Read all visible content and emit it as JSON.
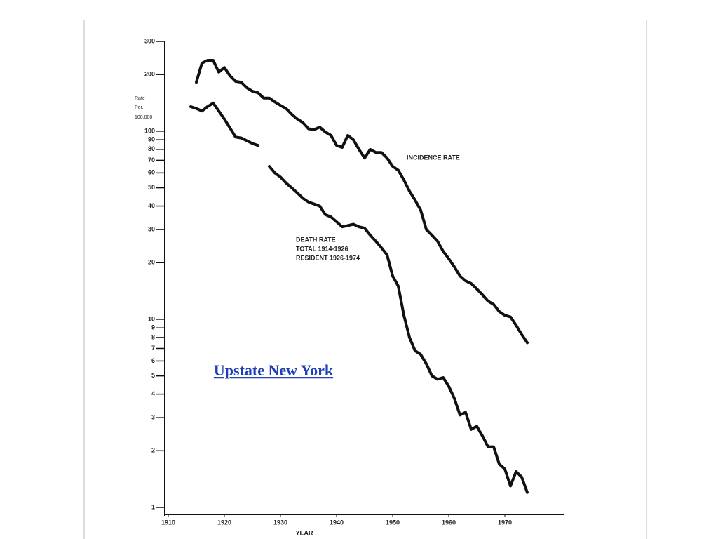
{
  "chart_data": {
    "type": "line",
    "title": "Upstate New York",
    "y_label": [
      "Rate",
      "Per.",
      "100,000"
    ],
    "x_label": "YEAR",
    "log_y": true,
    "color": "#111111",
    "x": [
      1914,
      1915,
      1916,
      1917,
      1918,
      1919,
      1920,
      1921,
      1922,
      1923,
      1924,
      1925,
      1926,
      1927,
      1928,
      1929,
      1930,
      1931,
      1932,
      1933,
      1934,
      1935,
      1936,
      1937,
      1938,
      1939,
      1940,
      1941,
      1942,
      1943,
      1944,
      1945,
      1946,
      1947,
      1948,
      1949,
      1950,
      1951,
      1952,
      1953,
      1954,
      1955,
      1956,
      1957,
      1958,
      1959,
      1960,
      1961,
      1962,
      1963,
      1964,
      1965,
      1966,
      1967,
      1968,
      1969,
      1970,
      1971,
      1972,
      1973,
      1974
    ],
    "series": [
      {
        "name": "INCIDENCE RATE",
        "color": "#111111",
        "values": [
          null,
          182,
          230,
          238,
          238,
          206,
          218,
          197,
          184,
          182,
          170,
          163,
          160,
          150,
          150,
          143,
          137,
          132,
          123,
          116,
          111,
          103,
          102,
          105,
          99,
          95,
          84,
          82,
          95,
          90,
          80,
          72,
          80,
          77,
          77,
          72,
          65,
          62,
          55,
          48,
          43,
          38,
          30,
          28,
          26,
          23,
          21,
          19,
          17,
          16,
          15.5,
          14.5,
          13.5,
          12.5,
          12,
          11,
          10.5,
          10.3,
          9.3,
          8.3,
          7.5
        ]
      },
      {
        "name": "DEATH RATE",
        "color": "#111111",
        "annotations": [
          "TOTAL 1914-1926",
          "RESIDENT 1926-1974"
        ],
        "values": [
          135,
          132,
          128,
          135,
          141,
          128,
          116,
          104,
          93,
          92,
          89,
          86,
          84,
          null,
          65,
          60,
          57,
          53,
          50,
          47,
          44,
          42,
          41,
          40,
          36,
          35,
          33,
          31,
          31.5,
          32,
          31,
          30.5,
          28,
          26,
          24,
          22,
          17,
          15,
          10.5,
          8,
          6.8,
          6.5,
          5.8,
          5,
          4.8,
          4.9,
          4.4,
          3.8,
          3.1,
          3.2,
          2.6,
          2.7,
          2.4,
          2.1,
          2.1,
          1.7,
          1.6,
          1.3,
          1.55,
          1.45,
          1.2
        ]
      }
    ],
    "xlim": [
      1909,
      1980
    ],
    "xticks": [
      1910,
      1920,
      1930,
      1940,
      1950,
      1960,
      1970
    ],
    "ylim": [
      1,
      300
    ],
    "yticks": [
      1,
      2,
      3,
      4,
      5,
      6,
      7,
      8,
      9,
      10,
      20,
      30,
      40,
      50,
      60,
      70,
      80,
      90,
      100,
      200,
      300
    ]
  }
}
